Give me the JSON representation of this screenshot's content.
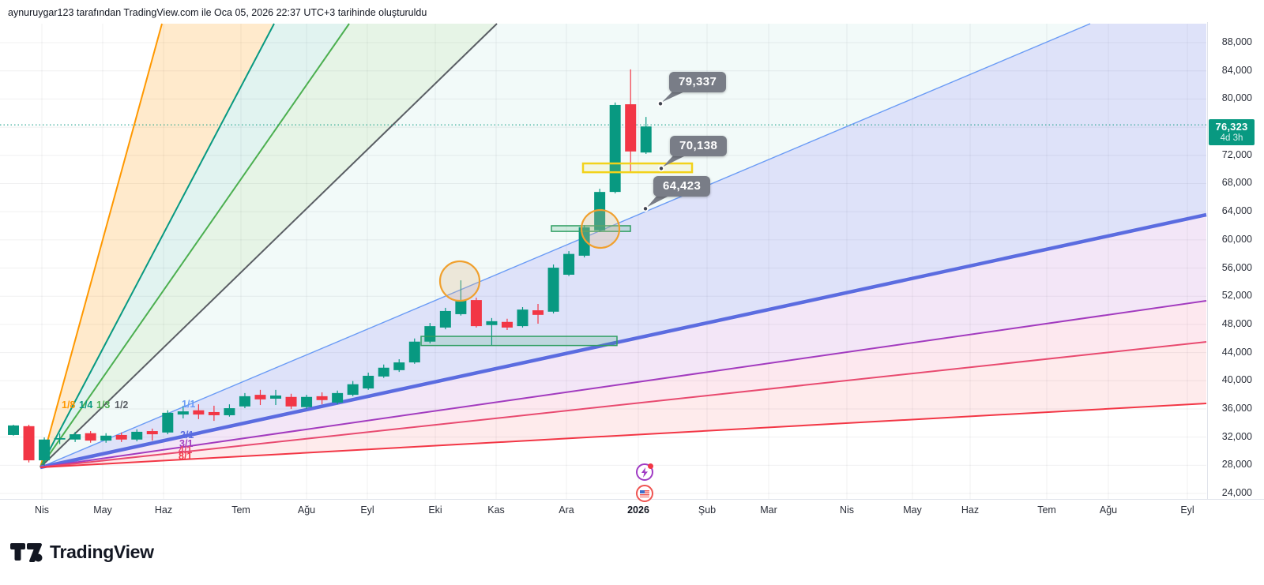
{
  "header": {
    "attribution": "aynuruygar123 tarafından TradingView.com ile Oca 05, 2026 22:37 UTC+3 tarihinde oluşturuldu"
  },
  "footer": {
    "logo_text": "TradingView"
  },
  "price_axis": {
    "ticks": [
      "88,000",
      "84,000",
      "80,000",
      "72,000",
      "68,000",
      "64,000",
      "60,000",
      "56,000",
      "52,000",
      "48,000",
      "44,000",
      "40,000",
      "36,000",
      "32,000",
      "28,000",
      "24,000"
    ],
    "badge": {
      "price": "76,323",
      "countdown": "4d 3h",
      "color": "#089981"
    }
  },
  "time_axis": {
    "labels": [
      "Nis",
      "May",
      "Haz",
      "Tem",
      "Ağu",
      "Eyl",
      "Eki",
      "Kas",
      "Ara",
      "2026",
      "Şub",
      "Mar",
      "Nis",
      "May",
      "Haz",
      "Tem",
      "Ağu",
      "Eyl"
    ],
    "bold_index": 9
  },
  "callouts": [
    {
      "label": "79,337",
      "value": 79337
    },
    {
      "label": "70,138",
      "value": 70138
    },
    {
      "label": "64,423",
      "value": 64423
    }
  ],
  "events": [
    {
      "name": "lightning-event",
      "color": "#a03bc4"
    },
    {
      "name": "us-flag-event",
      "color": "#ef5350"
    }
  ],
  "chart_data": {
    "type": "candlestick",
    "up_color": "#089981",
    "down_color": "#f23645",
    "ylim": [
      24000,
      88000
    ],
    "y_ticks": [
      88000,
      84000,
      80000,
      76000,
      72000,
      68000,
      64000,
      60000,
      56000,
      52000,
      48000,
      44000,
      40000,
      36000,
      32000,
      28000,
      24000
    ],
    "x_tick_labels": [
      "Nis",
      "May",
      "Haz",
      "Tem",
      "Ağu",
      "Eyl",
      "Eki",
      "Kas",
      "Ara",
      "2026",
      "Şub",
      "Mar",
      "Nis",
      "May",
      "Haz",
      "Tem",
      "Ağu",
      "Eyl"
    ],
    "last_price": 76323,
    "price_line": {
      "value": 76323,
      "color": "#089981",
      "style": "dotted"
    },
    "candles": [
      [
        32300,
        33750,
        32200,
        33650
      ],
      [
        33550,
        33750,
        28400,
        28700
      ],
      [
        28700,
        31950,
        27950,
        31650
      ],
      [
        31650,
        32500,
        31000,
        31850
      ],
      [
        31650,
        32750,
        31300,
        32400
      ],
      [
        32550,
        32850,
        31200,
        31500
      ],
      [
        31500,
        32550,
        31200,
        32200
      ],
      [
        32300,
        32650,
        31300,
        31650
      ],
      [
        31650,
        33100,
        31400,
        32750
      ],
      [
        32850,
        33200,
        31500,
        32400
      ],
      [
        32650,
        35800,
        32400,
        35450
      ],
      [
        35200,
        36450,
        34650,
        35650
      ],
      [
        35800,
        36650,
        34550,
        35200
      ],
      [
        35550,
        36450,
        34300,
        35100
      ],
      [
        35100,
        36650,
        34900,
        36100
      ],
      [
        36350,
        38250,
        36100,
        37800
      ],
      [
        38000,
        38700,
        36550,
        37350
      ],
      [
        37450,
        38700,
        36550,
        37900
      ],
      [
        37700,
        38150,
        36000,
        36350
      ],
      [
        36250,
        38000,
        36000,
        37700
      ],
      [
        37800,
        38350,
        36650,
        37250
      ],
      [
        36900,
        38600,
        36650,
        38250
      ],
      [
        38000,
        39950,
        37800,
        39500
      ],
      [
        38900,
        41150,
        38700,
        40700
      ],
      [
        40600,
        42300,
        40400,
        41850
      ],
      [
        41500,
        43050,
        41250,
        42600
      ],
      [
        42600,
        46000,
        42400,
        45550
      ],
      [
        45550,
        48200,
        45300,
        47750
      ],
      [
        47550,
        50350,
        47300,
        49900
      ],
      [
        49450,
        54250,
        49250,
        51450
      ],
      [
        51450,
        51800,
        47550,
        47750
      ],
      [
        47900,
        48900,
        45000,
        48450
      ],
      [
        48350,
        48800,
        47200,
        47550
      ],
      [
        47750,
        50450,
        47550,
        50100
      ],
      [
        50000,
        50900,
        48100,
        49350
      ],
      [
        49800,
        56500,
        49550,
        56050
      ],
      [
        55050,
        58400,
        54850,
        58000
      ],
      [
        57750,
        62100,
        57500,
        61800
      ],
      [
        61350,
        67250,
        61100,
        66800
      ],
      [
        66800,
        79500,
        66600,
        79150
      ],
      [
        79250,
        84200,
        69750,
        72550
      ],
      [
        72400,
        77450,
        72200,
        76100
      ]
    ],
    "gann_fan": {
      "labels": [
        "1/8",
        "1/4",
        "1/3",
        "1/2",
        "1/1",
        "2/1",
        "3/1",
        "4/1",
        "8/1"
      ],
      "line_colors": {
        "1/8": "#ff9800",
        "1/4": "#089981",
        "1/3": "#4caf50",
        "1/2": "#5a5e64",
        "1/1": "#6a9bf5",
        "2/1": "#5b6ce0",
        "3/1": "#a23bbf",
        "4/1": "#e84a6f",
        "8/1": "#f23645"
      }
    },
    "zones": [
      {
        "kind": "yellow-box",
        "price_from": 69600,
        "price_to": 70850,
        "border": "#f2d21b",
        "fill": "rgba(248,222,80,0.12)"
      },
      {
        "kind": "green-band",
        "price_from": 61200,
        "price_to": 62000,
        "border": "#2f9e62",
        "fill": "rgba(47,158,98,0.18)"
      },
      {
        "kind": "green-band",
        "price_from": 45000,
        "price_to": 46300,
        "border": "#2f9e62",
        "fill": "rgba(47,158,98,0.18)"
      }
    ],
    "circles": [
      {
        "price": 54150
      },
      {
        "price": 61550
      }
    ]
  }
}
